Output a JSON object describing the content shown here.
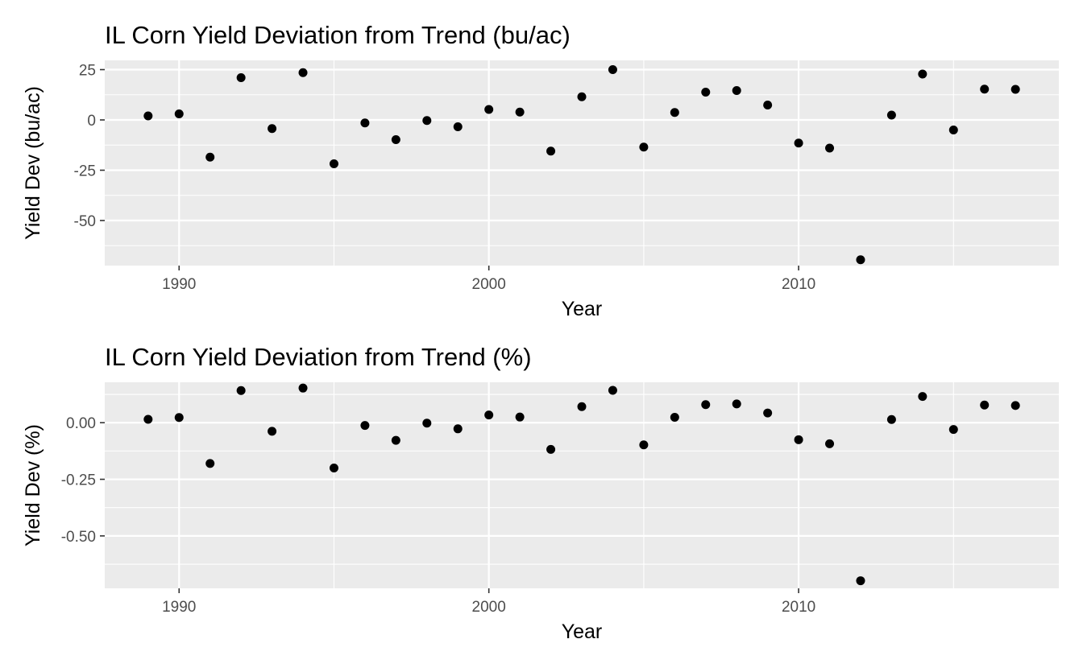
{
  "chart_data": [
    {
      "type": "scatter",
      "title": "IL Corn Yield Deviation from Trend (bu/ac)",
      "xlabel": "Year",
      "ylabel": "Yield Dev (bu/ac)",
      "xlim": [
        1987.6,
        2018.4
      ],
      "ylim": [
        -72.4,
        29.6
      ],
      "x_ticks": [
        1990,
        2000,
        2010
      ],
      "x_tick_labels": [
        "1990",
        "2000",
        "2010"
      ],
      "y_ticks": [
        25,
        0,
        -25,
        -50
      ],
      "y_tick_labels": [
        "25",
        "0",
        "-25",
        "-50"
      ],
      "grid": true,
      "series": [
        {
          "x": [
            1989,
            1990,
            1991,
            1992,
            1993,
            1994,
            1995,
            1996,
            1997,
            1998,
            1999,
            2000,
            2001,
            2002,
            2003,
            2004,
            2005,
            2006,
            2007,
            2008,
            2009,
            2010,
            2011,
            2012,
            2013,
            2014,
            2015,
            2016,
            2017
          ],
          "y": [
            2,
            3,
            -18.5,
            21,
            -4.3,
            23.5,
            -21.8,
            -1.5,
            -9.8,
            -0.3,
            -3.4,
            5.2,
            3.9,
            -15.5,
            11.5,
            25,
            -13.5,
            3.7,
            13.8,
            14.6,
            7.4,
            -11.5,
            -14,
            -69.5,
            2.4,
            22.8,
            -5,
            15.3,
            15.2
          ]
        }
      ]
    },
    {
      "type": "scatter",
      "title": "IL Corn Yield Deviation from Trend (%)",
      "xlabel": "Year",
      "ylabel": "Yield Dev (%)",
      "xlim": [
        1987.6,
        2018.4
      ],
      "ylim": [
        -0.7315,
        0.1785
      ],
      "x_ticks": [
        1990,
        2000,
        2010
      ],
      "x_tick_labels": [
        "1990",
        "2000",
        "2010"
      ],
      "y_ticks": [
        0.0,
        -0.25,
        -0.5
      ],
      "y_tick_labels": [
        "0.00",
        "-0.25",
        "-0.50"
      ],
      "grid": true,
      "series": [
        {
          "x": [
            1989,
            1990,
            1991,
            1992,
            1993,
            1994,
            1995,
            1996,
            1997,
            1998,
            1999,
            2000,
            2001,
            2002,
            2003,
            2004,
            2005,
            2006,
            2007,
            2008,
            2009,
            2010,
            2011,
            2012,
            2013,
            2014,
            2015,
            2016,
            2017
          ],
          "y": [
            0.015,
            0.023,
            -0.18,
            0.142,
            -0.038,
            0.153,
            -0.2,
            -0.012,
            -0.078,
            -0.002,
            -0.027,
            0.034,
            0.025,
            -0.118,
            0.071,
            0.143,
            -0.098,
            0.024,
            0.08,
            0.083,
            0.043,
            -0.075,
            -0.093,
            -0.698,
            0.014,
            0.116,
            -0.03,
            0.078,
            0.076
          ]
        }
      ]
    }
  ]
}
